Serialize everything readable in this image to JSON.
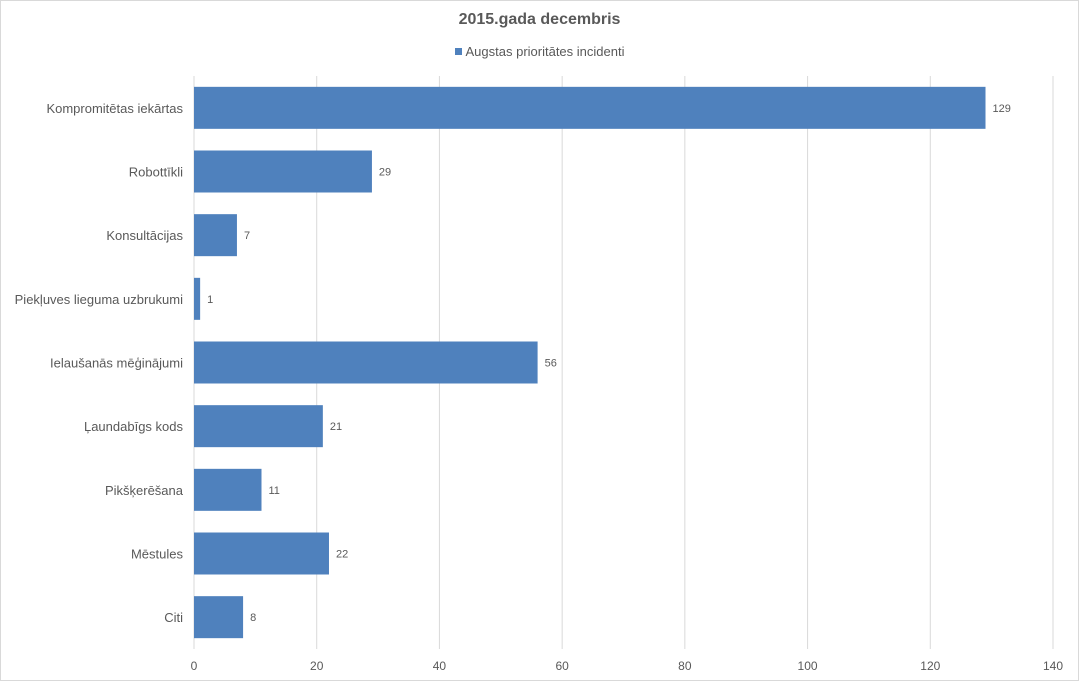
{
  "chart_data": {
    "type": "bar",
    "orientation": "horizontal",
    "title": "2015.gada decembris",
    "xlabel": "",
    "ylabel": "",
    "categories": [
      "Kompromitētas iekārtas",
      "Robottīkli",
      "Konsultācijas",
      "Piekļuves lieguma uzbrukumi",
      "Ielaušanās mēģinājumi",
      "Ļaundabīgs kods",
      "Pikšķerēšana",
      "Mēstules",
      "Citi"
    ],
    "series": [
      {
        "name": "Augstas prioritātes incidenti",
        "values": [
          129,
          29,
          7,
          1,
          56,
          21,
          11,
          22,
          8
        ],
        "color": "#4f81bd"
      }
    ],
    "xlim": [
      0,
      140
    ],
    "xticks": [
      "0",
      "20",
      "40",
      "60",
      "80",
      "100",
      "120",
      "140"
    ],
    "grid": true,
    "legend_position": "top"
  }
}
